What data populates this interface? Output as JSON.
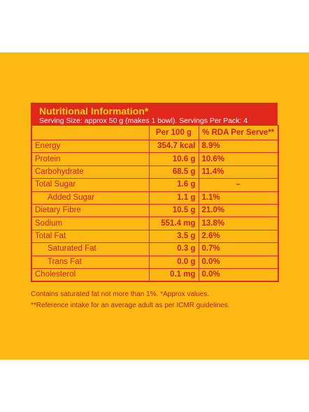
{
  "title": "Nutritional Information*",
  "serving": "Serving Size: approx 50 g (makes 1 bowl). Servings Per Pack: 4",
  "columns": [
    "Per 100 g",
    "% RDA Per Serve**"
  ],
  "rows": [
    {
      "name": "Energy",
      "per100": "354.7 kcal",
      "rda": "8.9%"
    },
    {
      "name": "Protein",
      "per100": "10.6 g",
      "rda": "10.6%"
    },
    {
      "name": "Carbohydrate",
      "per100": "68.5 g",
      "rda": "11.4%"
    },
    {
      "name": "Total Sugar",
      "per100": "1.6 g",
      "rda": "–"
    },
    {
      "name": "Added Sugar",
      "per100": "1.1 g",
      "rda": "1.1%"
    },
    {
      "name": "Dietary Fibre",
      "per100": "10.5 g",
      "rda": "21.0%"
    },
    {
      "name": "Sodium",
      "per100": "551.4 mg",
      "rda": "13.8%"
    },
    {
      "name": "Total Fat",
      "per100": "3.5 g",
      "rda": "2.6%"
    },
    {
      "name": "Saturated Fat",
      "per100": "0.3 g",
      "rda": "0.7%"
    },
    {
      "name": "Trans Fat",
      "per100": "0.0 g",
      "rda": "0.0%"
    },
    {
      "name": "Cholesterol",
      "per100": "0.1 mg",
      "rda": "0.0%"
    }
  ],
  "footnotes": [
    "Contains saturated fat not more than 1%. *Approx values.",
    "**Reference intake for an average adult as per ICMR guidelines."
  ],
  "colors": {
    "background": "#fdb913",
    "header": "#e0271b",
    "title": "#ffd21f",
    "text": "#c9201a"
  }
}
